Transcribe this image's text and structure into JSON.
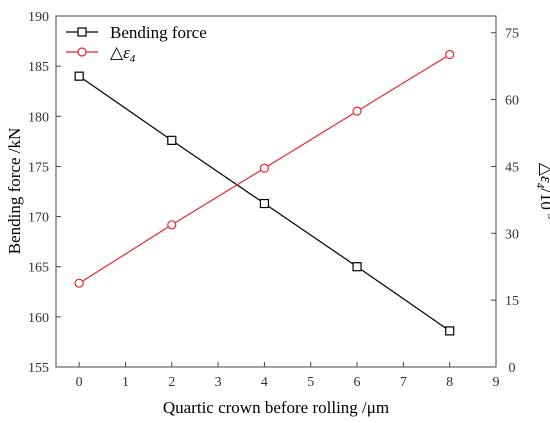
{
  "chart_data": {
    "type": "line",
    "x": [
      0,
      2,
      4,
      6,
      8
    ],
    "xlabel": "Quartic crown before rolling /μm",
    "xlim": [
      -0.5,
      9
    ],
    "xticks": [
      "0",
      "1",
      "2",
      "3",
      "4",
      "5",
      "6",
      "7",
      "8",
      "9"
    ],
    "ylabel_left": "Bending force /kN",
    "ylim_left": [
      155,
      190
    ],
    "yticks_left": [
      "155",
      "160",
      "165",
      "170",
      "175",
      "180",
      "185",
      "190"
    ],
    "ylabel_right_main": "△ε",
    "ylabel_right_sub": "4",
    "ylabel_right_tail": "/10",
    "ylabel_right_sup": "-5",
    "ylim_right": [
      0,
      78.75
    ],
    "yticks_right": [
      "0",
      "15",
      "30",
      "45",
      "60",
      "75"
    ],
    "grid": false,
    "legend_position": "top-left",
    "series": [
      {
        "name": "Bending force",
        "axis": "left",
        "marker": "square",
        "color": "#000000",
        "values": [
          184.0,
          177.6,
          171.3,
          165.0,
          158.6
        ]
      },
      {
        "name": "△ε4",
        "name_main": "△ε",
        "name_sub": "4",
        "axis": "right",
        "marker": "circle",
        "color": "#e8262c",
        "values": [
          18.8,
          31.9,
          44.6,
          57.4,
          70.1
        ]
      }
    ]
  }
}
